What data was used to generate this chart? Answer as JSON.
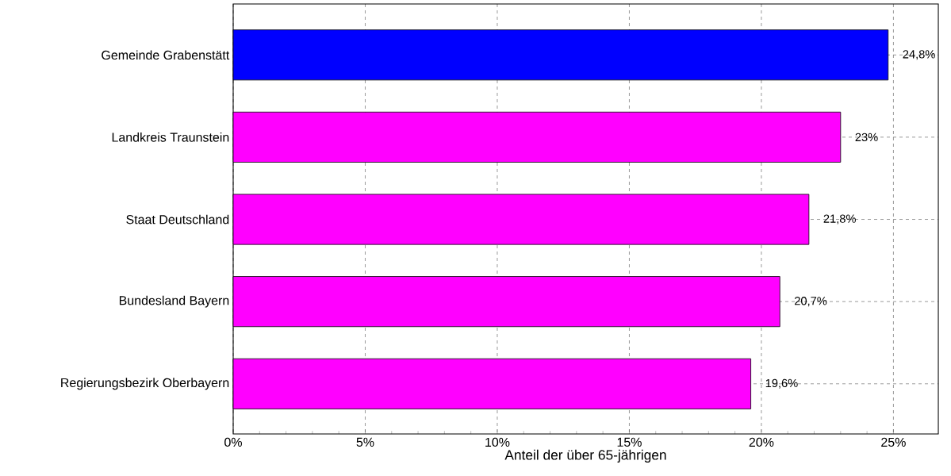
{
  "chart_data": {
    "type": "bar",
    "orientation": "horizontal",
    "xlabel": "Anteil der über 65-jährigen",
    "categories": [
      "Gemeinde Grabenstätt",
      "Landkreis Traunstein",
      "Staat Deutschland",
      "Bundesland Bayern",
      "Regierungsbezirk Oberbayern"
    ],
    "values": [
      24.8,
      23,
      21.8,
      20.7,
      19.6
    ],
    "colors": [
      "#0000ff",
      "#ff00ff",
      "#ff00ff",
      "#ff00ff",
      "#ff00ff"
    ],
    "value_labels": [
      "24,8%",
      "23%",
      "21,8%",
      "20,7%",
      "19,6%"
    ],
    "xlim": [
      0,
      26.7
    ],
    "xticks": [
      {
        "value": 0,
        "label": "0%"
      },
      {
        "value": 5,
        "label": "5%"
      },
      {
        "value": 10,
        "label": "10%"
      },
      {
        "value": 15,
        "label": "15%"
      },
      {
        "value": 20,
        "label": "20%"
      },
      {
        "value": 25,
        "label": "25%"
      }
    ],
    "grid": true
  }
}
